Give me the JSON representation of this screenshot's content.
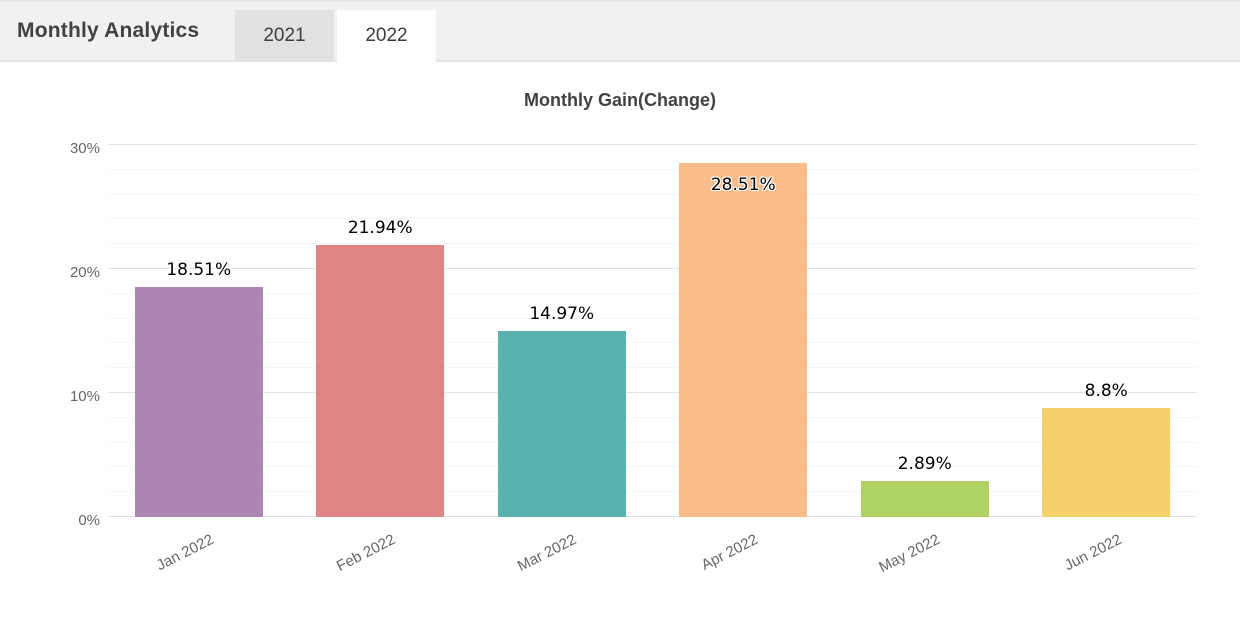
{
  "header": {
    "title": "Monthly Analytics",
    "tabs": [
      {
        "label": "2021",
        "active": false
      },
      {
        "label": "2022",
        "active": true
      }
    ]
  },
  "chart_data": {
    "type": "bar",
    "title": "Monthly Gain(Change)",
    "categories": [
      "Jan 2022",
      "Feb 2022",
      "Mar 2022",
      "Apr 2022",
      "May 2022",
      "Jun 2022"
    ],
    "values": [
      18.51,
      21.94,
      14.97,
      28.51,
      2.89,
      8.8
    ],
    "data_labels": [
      "18.51%",
      "21.94%",
      "14.97%",
      "28.51%",
      "2.89%",
      "8.8%"
    ],
    "bar_colors": [
      "#ad85b3",
      "#de8584",
      "#5ab2af",
      "#fbbc8b",
      "#b0d164",
      "#f3d06a"
    ],
    "xlabel": "",
    "ylabel": "",
    "ylim": [
      0,
      30
    ],
    "ytick_values": [
      0,
      10,
      20,
      30
    ],
    "ytick_labels": [
      "0%",
      "10%",
      "20%",
      "30%"
    ],
    "minor_tick_step": 2,
    "grid": true,
    "legend": "none"
  }
}
